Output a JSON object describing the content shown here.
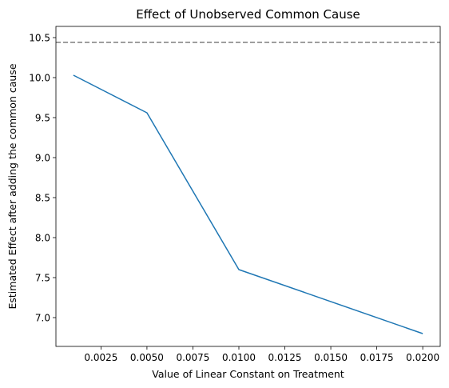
{
  "chart_data": {
    "type": "line",
    "title": "Effect of Unobserved Common Cause",
    "xlabel": "Value of Linear Constant on Treatment",
    "ylabel": "Estimated Effect after adding the common cause",
    "x": [
      0.001,
      0.005,
      0.01,
      0.02
    ],
    "series": [
      {
        "values": [
          10.03,
          9.56,
          7.6,
          6.8
        ],
        "color": "#1f77b4"
      }
    ],
    "reference_line": {
      "orientation": "horizontal",
      "y": 10.44,
      "style": "dashed",
      "color": "#7f7f7f"
    },
    "xlim": [
      5e-05,
      0.02095
    ],
    "ylim": [
      6.64,
      10.64
    ],
    "xticks": [
      0.0025,
      0.005,
      0.0075,
      0.01,
      0.0125,
      0.015,
      0.0175,
      0.02
    ],
    "xtick_labels": [
      "0.0025",
      "0.0050",
      "0.0075",
      "0.0100",
      "0.0125",
      "0.0150",
      "0.0175",
      "0.0200"
    ],
    "yticks": [
      7.0,
      7.5,
      8.0,
      8.5,
      9.0,
      9.5,
      10.0,
      10.5
    ],
    "ytick_labels": [
      "7.0",
      "7.5",
      "8.0",
      "8.5",
      "9.0",
      "9.5",
      "10.0",
      "10.5"
    ],
    "grid": false,
    "legend": "none"
  }
}
